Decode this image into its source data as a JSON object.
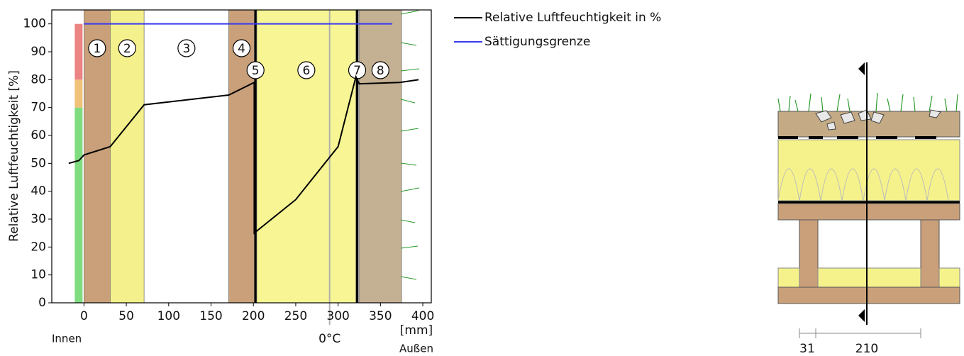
{
  "chart_data": {
    "type": "line",
    "y_label": "Relative Luftfeuchtigkeit [%]",
    "x_unit": "[mm]",
    "inside_label": "Innen",
    "outside_label": "Außen",
    "xlim": [
      -38,
      410
    ],
    "xticks": [
      0,
      50,
      100,
      150,
      200,
      250,
      300,
      350,
      400
    ],
    "ylim": [
      0,
      105
    ],
    "yticks": [
      0,
      10,
      20,
      30,
      40,
      50,
      60,
      70,
      80,
      90,
      100
    ],
    "legend": "outside-right",
    "series": [
      {
        "name": "Relative Luftfeuchtigkeit in %",
        "color": "#000000",
        "x": [
          -18,
          -6,
          0,
          31,
          71,
          171,
          201,
          201,
          250,
          300,
          321,
          325,
          373,
          395
        ],
        "values": [
          50,
          51,
          53,
          56,
          71,
          74.5,
          79,
          25,
          37,
          56,
          81,
          78.5,
          79,
          80
        ]
      },
      {
        "name": "Sättigungsgrenze",
        "color": "#3a3af0",
        "x": [
          0,
          364
        ],
        "values": [
          100,
          100
        ]
      }
    ],
    "layers": [
      {
        "label": "1",
        "range": [
          0,
          31
        ],
        "color": "#c9a07a"
      },
      {
        "label": "2",
        "range": [
          31,
          71
        ],
        "color": "#f4f18c"
      },
      {
        "label": "3",
        "range": [
          71,
          171
        ],
        "color": "#ffffff"
      },
      {
        "label": "4",
        "range": [
          171,
          201
        ],
        "color": "#c9a07a"
      },
      {
        "label": "5",
        "range": [
          201,
          204
        ],
        "color": "#000000"
      },
      {
        "label": "6",
        "range": [
          204,
          321
        ],
        "color": "#f7f594"
      },
      {
        "label": "7",
        "range": [
          321,
          324
        ],
        "color": "#000000"
      },
      {
        "label": "8",
        "range": [
          325,
          375
        ],
        "color": "#c4b092"
      }
    ],
    "humidity_bands": [
      {
        "range": [
          0,
          70
        ],
        "color": "#7fdc7f"
      },
      {
        "range": [
          70,
          80
        ],
        "color": "#f0c27a"
      },
      {
        "range": [
          80,
          100
        ],
        "color": "#ec8484"
      }
    ],
    "freezing_line": {
      "x": 290,
      "label": "0°C",
      "color": "#b0b0b0"
    }
  },
  "detail": {
    "dimension_labels": [
      "31",
      "210"
    ]
  }
}
